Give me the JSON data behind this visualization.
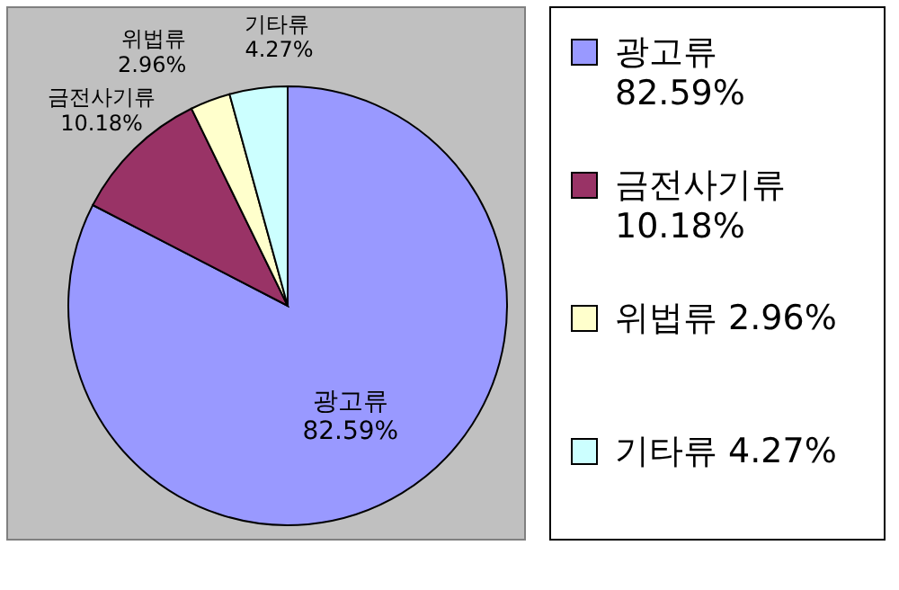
{
  "chart_data": {
    "type": "pie",
    "categories": [
      "광고류",
      "금전사기류",
      "위법류",
      "기타류"
    ],
    "values": [
      82.59,
      10.18,
      2.96,
      4.27
    ],
    "colors": [
      "#9999ff",
      "#993366",
      "#ffffcc",
      "#ccffff"
    ],
    "value_labels": [
      "82.59%",
      "10.18%",
      "2.96%",
      "4.27%"
    ],
    "legend": "right"
  }
}
